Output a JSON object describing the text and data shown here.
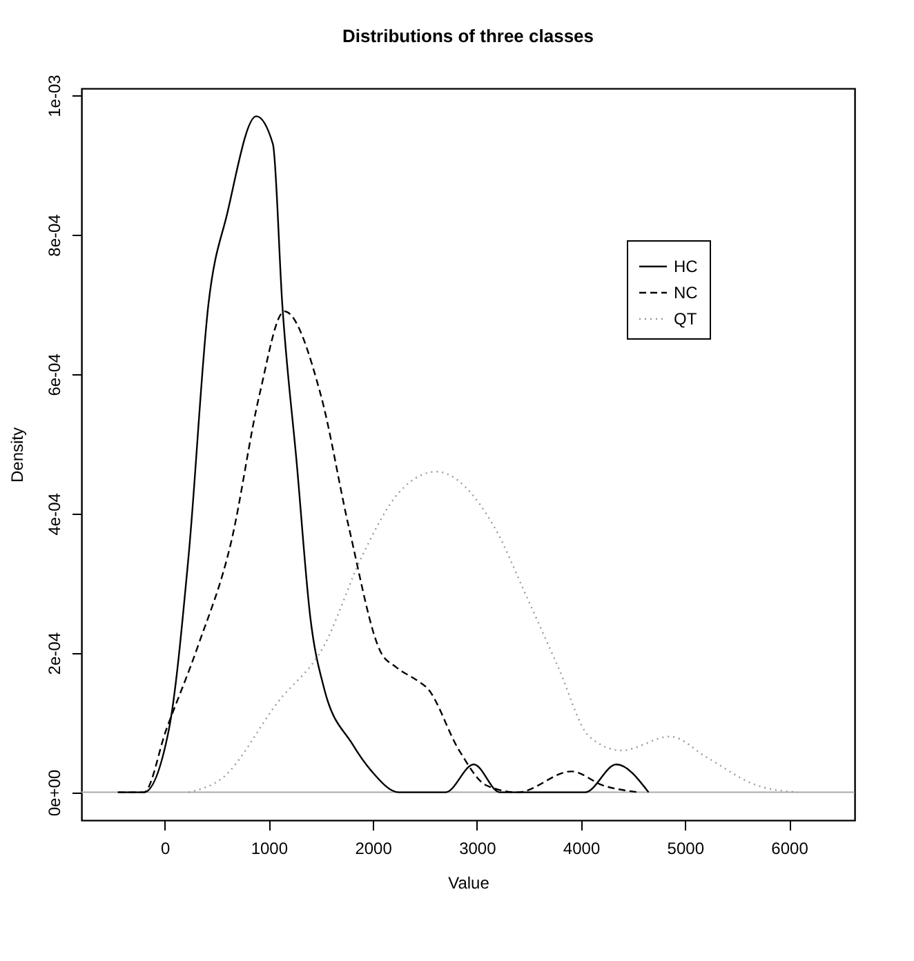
{
  "chart_data": {
    "type": "line",
    "title": "Distributions of three classes",
    "xlabel": "Value",
    "ylabel": "Density",
    "xlim": [
      -800,
      6630
    ],
    "xticks": [
      0,
      1000,
      2000,
      3000,
      4000,
      5000,
      6000
    ],
    "ylim": [
      -4e-05,
      0.00101
    ],
    "yticks": [
      {
        "value": 0,
        "label": "0e+00"
      },
      {
        "value": 0.0002,
        "label": "2e-04"
      },
      {
        "value": 0.0004,
        "label": "4e-04"
      },
      {
        "value": 0.0006,
        "label": "6e-04"
      },
      {
        "value": 0.0008,
        "label": "8e-04"
      },
      {
        "value": 0.001,
        "label": "1e-03"
      }
    ],
    "grid": false,
    "legend": "top right",
    "ref_lines": [
      {
        "axis": "y",
        "value": 0,
        "color": "#aaaaaa"
      }
    ],
    "series": [
      {
        "name": "HC",
        "color": "#000000",
        "line_style": "solid",
        "x": [
          -450,
          -200,
          40,
          230,
          420,
          600,
          880,
          1040,
          1130,
          1270,
          1400,
          1530,
          1800,
          1990,
          2250,
          2700,
          2970,
          3220,
          4040,
          4340,
          4650
        ],
        "values": [
          0,
          0,
          9e-05,
          0.00034,
          0.0007,
          0.00083,
          0.00097,
          0.00093,
          0.0007,
          0.00047,
          0.00025,
          0.00015,
          7e-05,
          3e-05,
          0,
          0,
          4e-05,
          0,
          0,
          4e-05,
          0
        ]
      },
      {
        "name": "NC",
        "color": "#000000",
        "line_style": "dashed",
        "x": [
          -450,
          -200,
          15,
          320,
          640,
          910,
          1150,
          1500,
          1770,
          2080,
          2220,
          2430,
          2520,
          2830,
          3090,
          3390,
          3910,
          4210,
          4560
        ],
        "values": [
          0,
          0,
          9e-05,
          0.00021,
          0.00036,
          0.00057,
          0.00069,
          0.00057,
          0.00038,
          0.0002,
          0.00018,
          0.00016,
          0.00015,
          6e-05,
          1e-05,
          0,
          3e-05,
          1e-05,
          0
        ]
      },
      {
        "name": "QT",
        "color": "#999999",
        "line_style": "dotted",
        "x": [
          230,
          550,
          1090,
          1530,
          1900,
          2250,
          2610,
          3170,
          3480,
          3780,
          4080,
          4390,
          4860,
          5210,
          5690,
          6080
        ],
        "values": [
          0,
          2e-05,
          0.00013,
          0.00021,
          0.00034,
          0.00043,
          0.00046,
          0.00038,
          0.00028,
          0.00018,
          8e-05,
          6e-05,
          8e-05,
          5e-05,
          1e-05,
          0
        ]
      }
    ]
  }
}
